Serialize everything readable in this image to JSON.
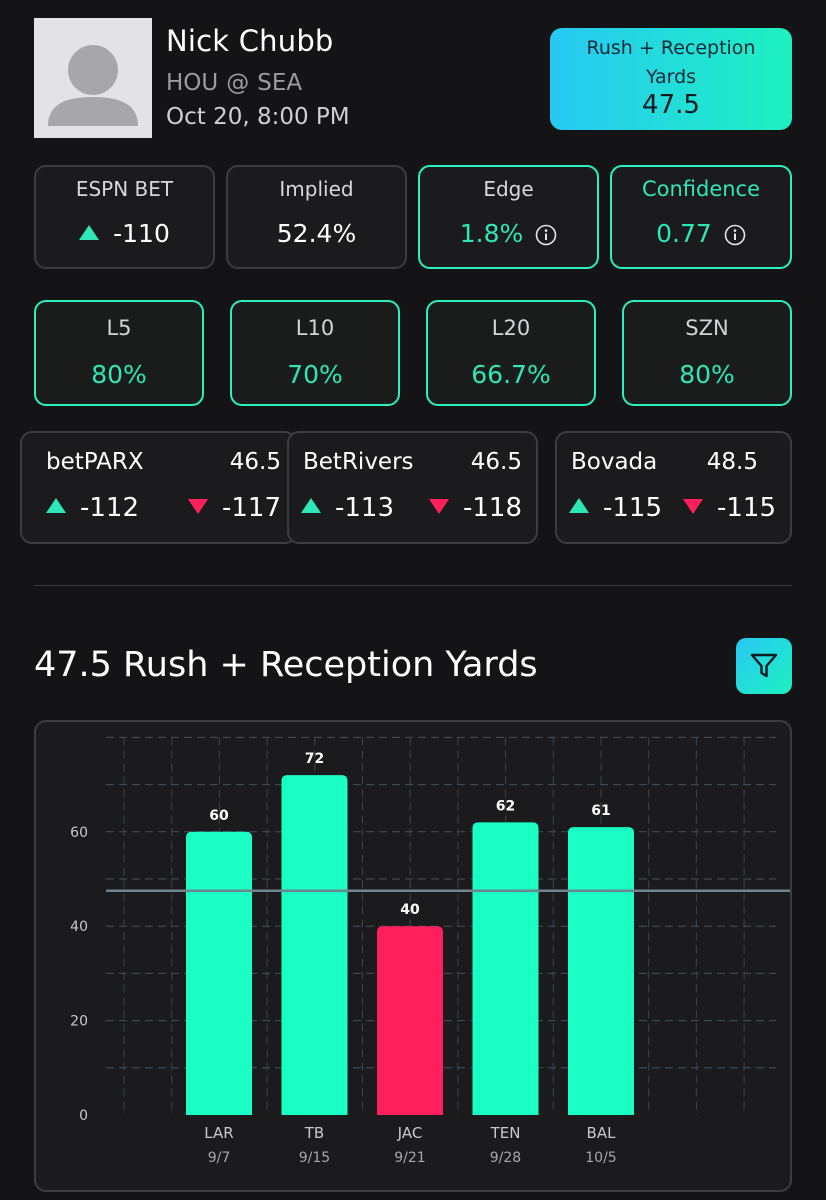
{
  "player": {
    "name": "Nick Chubb",
    "team": "HOU",
    "at": "@",
    "opponent": "SEA",
    "game_time": "Oct 20, 8:00 PM"
  },
  "prop": {
    "label_line1": "Rush + Reception",
    "label_line2": "Yards",
    "line": "47.5"
  },
  "stats": {
    "espn": {
      "title": "ESPN BET",
      "value": "-110"
    },
    "implied": {
      "title": "Implied",
      "value": "52.4%"
    },
    "edge": {
      "title": "Edge",
      "value": "1.8%"
    },
    "confidence": {
      "title": "Confidence",
      "value": "0.77"
    }
  },
  "hit_rates": [
    {
      "title": "L5",
      "value": "80%"
    },
    {
      "title": "L10",
      "value": "70%"
    },
    {
      "title": "L20",
      "value": "66.7%"
    },
    {
      "title": "SZN",
      "value": "80%"
    }
  ],
  "books": [
    {
      "name": "betPARX",
      "line": "46.5",
      "over": "-112",
      "under": "-117"
    },
    {
      "name": "BetRivers",
      "line": "46.5",
      "over": "-113",
      "under": "-118"
    },
    {
      "name": "Bovada",
      "line": "48.5",
      "over": "-115",
      "under": "-115"
    }
  ],
  "section": {
    "title": "47.5 Rush + Reception Yards"
  },
  "colors": {
    "accent": "#2ee6b6",
    "over_bar": "#1affc4",
    "under_bar": "#ff1f5a",
    "gradient_start": "#27c8f4",
    "gradient_end": "#1ef1c0"
  },
  "icons": {
    "avatar": "person-placeholder-icon",
    "info": "info-icon",
    "up": "triangle-up-icon",
    "down": "triangle-down-icon",
    "filter": "filter-funnel-icon"
  },
  "chart_data": {
    "type": "bar",
    "categories": [
      "LAR",
      "TB",
      "JAC",
      "TEN",
      "BAL"
    ],
    "dates": [
      "9/7",
      "9/15",
      "9/21",
      "9/28",
      "10/5"
    ],
    "values": [
      60,
      72,
      40,
      62,
      61
    ],
    "threshold": 47.5,
    "yticks": [
      0,
      20,
      40,
      60
    ],
    "ylim": [
      0,
      80
    ],
    "grid": true,
    "title": "",
    "xlabel": "",
    "ylabel": ""
  }
}
